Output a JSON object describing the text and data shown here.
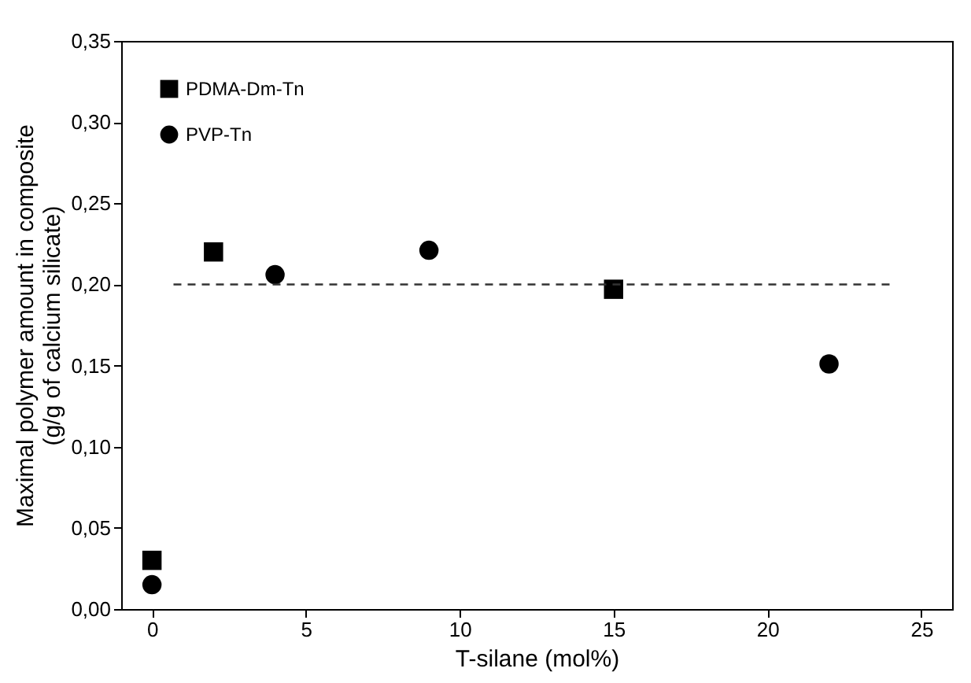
{
  "chart_data": {
    "type": "scatter",
    "xlabel": "T-silane (mol%)",
    "ylabel": "Maximal polymer amount in composite\n(g/g of calcium silicate)",
    "xlim": [
      -1,
      26
    ],
    "xticks": [
      0,
      5,
      10,
      15,
      20,
      25
    ],
    "ylim": [
      0,
      0.35
    ],
    "yticks": [
      {
        "value": 0,
        "label": "0,00"
      },
      {
        "value": 0.05,
        "label": "0,05"
      },
      {
        "value": 0.1,
        "label": "0,10"
      },
      {
        "value": 0.15,
        "label": "0,15"
      },
      {
        "value": 0.2,
        "label": "0,20"
      },
      {
        "value": 0.25,
        "label": "0,25"
      },
      {
        "value": 0.3,
        "label": "0,30"
      },
      {
        "value": 0.35,
        "label": "0,35"
      }
    ],
    "legend": "top left",
    "grid": false,
    "series": [
      {
        "name": "PDMA-Dm-Tn",
        "color": "#000000",
        "marker": "square",
        "x": [
          0,
          2,
          15
        ],
        "values": [
          0.03,
          0.22,
          0.197
        ]
      },
      {
        "name": "PVP-Tn",
        "color": "#000000",
        "marker": "circle",
        "x": [
          0,
          4,
          9,
          22
        ],
        "values": [
          0.015,
          0.206,
          0.221,
          0.151
        ]
      },
      {
        "type": "line",
        "color": "#333333",
        "line_style": "dashed",
        "marker": "none",
        "x": [
          0.7,
          24
        ],
        "values": [
          0.2,
          0.2
        ]
      }
    ]
  }
}
